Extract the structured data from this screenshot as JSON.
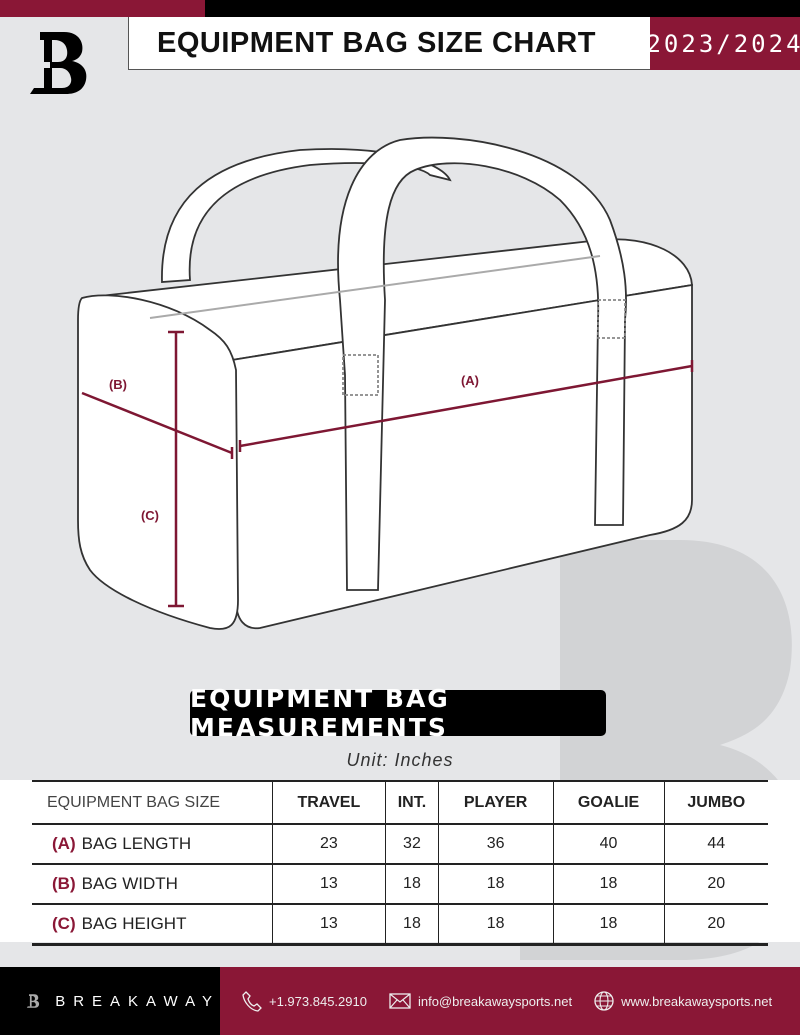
{
  "header": {
    "title": "EQUIPMENT BAG SIZE CHART",
    "season": "2023/2024",
    "logo_text": "B"
  },
  "diagram": {
    "label_a": "(A)",
    "label_b": "(B)",
    "label_c": "(C)"
  },
  "section_title": "EQUIPMENT BAG MEASUREMENTS",
  "unit": "Unit: Inches",
  "table": {
    "corner": "EQUIPMENT BAG SIZE",
    "columns": [
      "TRAVEL",
      "INT.",
      "PLAYER",
      "GOALIE",
      "JUMBO"
    ],
    "rows": [
      {
        "letter": "(A)",
        "label": "BAG LENGTH",
        "values": [
          "23",
          "32",
          "36",
          "40",
          "44"
        ]
      },
      {
        "letter": "(B)",
        "label": "BAG WIDTH",
        "values": [
          "13",
          "18",
          "18",
          "18",
          "20"
        ]
      },
      {
        "letter": "(C)",
        "label": "BAG HEIGHT",
        "values": [
          "13",
          "18",
          "18",
          "18",
          "20"
        ]
      }
    ]
  },
  "footer": {
    "brand": "BREAKAWAY",
    "phone": "+1.973.845.2910",
    "email": "info@breakawaysports.net",
    "website": "www.breakawaysports.net"
  },
  "colors": {
    "accent": "#8a1736",
    "dark": "#000000",
    "background": "#e5e6e8"
  }
}
